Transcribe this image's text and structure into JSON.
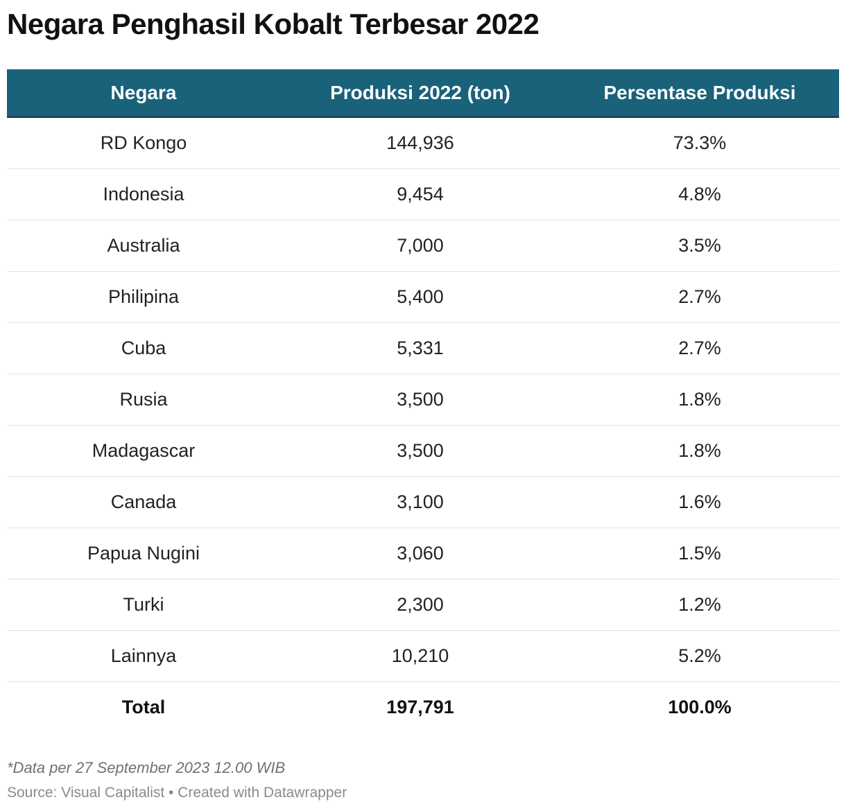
{
  "title": "Negara Penghasil Kobalt Terbesar 2022",
  "header_color": "#19627a",
  "chart_data": {
    "type": "table",
    "title": "Negara Penghasil Kobalt Terbesar 2022",
    "columns": [
      "Negara",
      "Produksi 2022 (ton)",
      "Persentase Produksi"
    ],
    "rows": [
      [
        "RD Kongo",
        "144,936",
        "73.3%"
      ],
      [
        "Indonesia",
        "9,454",
        "4.8%"
      ],
      [
        "Australia",
        "7,000",
        "3.5%"
      ],
      [
        "Philipina",
        "5,400",
        "2.7%"
      ],
      [
        "Cuba",
        "5,331",
        "2.7%"
      ],
      [
        "Rusia",
        "3,500",
        "1.8%"
      ],
      [
        "Madagascar",
        "3,500",
        "1.8%"
      ],
      [
        "Canada",
        "3,100",
        "1.6%"
      ],
      [
        "Papua Nugini",
        "3,060",
        "1.5%"
      ],
      [
        "Turki",
        "2,300",
        "1.2%"
      ],
      [
        "Lainnya",
        "10,210",
        "5.2%"
      ]
    ],
    "total": [
      "Total",
      "197,791",
      "100.0%"
    ]
  },
  "footer": {
    "note": "*Data per 27 September 2023 12.00 WIB",
    "source": "Source: Visual Capitalist • Created with Datawrapper"
  }
}
